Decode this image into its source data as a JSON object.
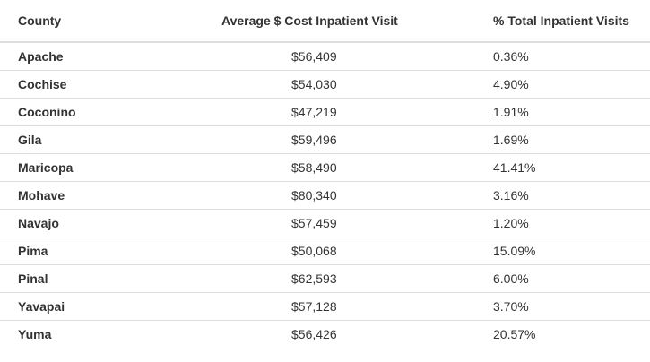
{
  "table": {
    "headers": {
      "county": "County",
      "cost": "Average $ Cost Inpatient Visit",
      "visits": "% Total Inpatient Visits"
    },
    "rows": [
      {
        "county": "Apache",
        "cost": "$56,409",
        "visits": "0.36%"
      },
      {
        "county": "Cochise",
        "cost": "$54,030",
        "visits": "4.90%"
      },
      {
        "county": "Coconino",
        "cost": "$47,219",
        "visits": "1.91%"
      },
      {
        "county": "Gila",
        "cost": "$59,496",
        "visits": "1.69%"
      },
      {
        "county": "Maricopa",
        "cost": "$58,490",
        "visits": "41.41%"
      },
      {
        "county": "Mohave",
        "cost": "$80,340",
        "visits": "3.16%"
      },
      {
        "county": "Navajo",
        "cost": "$57,459",
        "visits": "1.20%"
      },
      {
        "county": "Pima",
        "cost": "$50,068",
        "visits": "15.09%"
      },
      {
        "county": "Pinal",
        "cost": "$62,593",
        "visits": "6.00%"
      },
      {
        "county": "Yavapai",
        "cost": "$57,128",
        "visits": "3.70%"
      },
      {
        "county": "Yuma",
        "cost": "$56,426",
        "visits": "20.57%"
      }
    ]
  }
}
